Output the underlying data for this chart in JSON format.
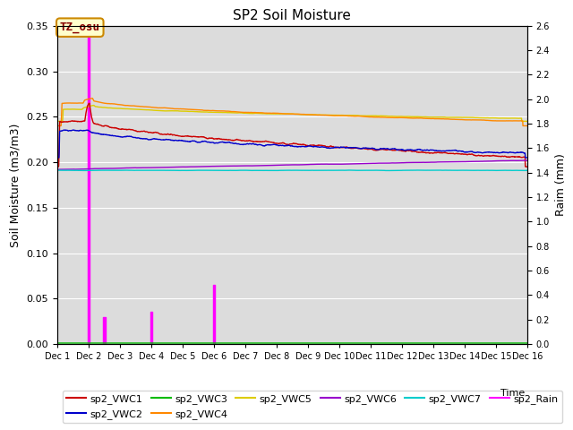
{
  "title": "SP2 Soil Moisture",
  "xlabel": "Time",
  "ylabel_left": "Soil Moisture (m3/m3)",
  "ylabel_right": "Raim (mm)",
  "ylim_left": [
    0.0,
    0.35
  ],
  "ylim_right": [
    0.0,
    2.6
  ],
  "x_ticks_labels": [
    "Dec 1",
    "Dec 2",
    "Dec 3",
    "Dec 4",
    "Dec 5",
    "Dec 6",
    "Dec 7",
    "Dec 8",
    "Dec 9",
    "Dec 10",
    "Dec 11",
    "Dec 12",
    "Dec 13",
    "Dec 14",
    "Dec 15",
    "Dec 16"
  ],
  "bg_color": "#dcdcdc",
  "fig_bg": "#ffffff",
  "annotation_text": "TZ_osu",
  "line_colors": {
    "VWC1": "#cc0000",
    "VWC2": "#0000cc",
    "VWC3": "#00bb00",
    "VWC4": "#ff8800",
    "VWC5": "#ddcc00",
    "VWC6": "#9900cc",
    "VWC7": "#00cccc",
    "Rain": "#ff00ff"
  },
  "num_points": 2000
}
